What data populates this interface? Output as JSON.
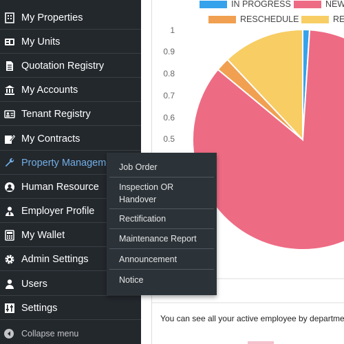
{
  "sidebar": {
    "items": [
      {
        "label": "My Properties",
        "icon": "building-icon"
      },
      {
        "label": "My Units",
        "icon": "units-icon"
      },
      {
        "label": "Quotation Registry",
        "icon": "document-icon"
      },
      {
        "label": "My Accounts",
        "icon": "bank-icon"
      },
      {
        "label": "Tenant Registry",
        "icon": "id-card-icon"
      },
      {
        "label": "My Contracts",
        "icon": "edit-icon"
      },
      {
        "label": "Property Management",
        "icon": "wrench-icon"
      },
      {
        "label": "Human Resource",
        "icon": "users-circle-icon"
      },
      {
        "label": "Employer Profile",
        "icon": "user-tie-icon"
      },
      {
        "label": "My Wallet",
        "icon": "calculator-icon"
      },
      {
        "label": "Admin Settings",
        "icon": "gear-icon"
      },
      {
        "label": "Users",
        "icon": "user-icon"
      },
      {
        "label": "Settings",
        "icon": "sliders-icon"
      }
    ],
    "collapse_label": "Collapse menu"
  },
  "submenu": {
    "items": [
      {
        "label": "Job Order"
      },
      {
        "label": "Inspection OR Handover"
      },
      {
        "label": "Rectification"
      },
      {
        "label": "Maintenance Report"
      },
      {
        "label": "Announcement"
      },
      {
        "label": "Notice"
      }
    ]
  },
  "main": {
    "partial_label": "...ployee...",
    "note": "You can see all your active employee by department"
  },
  "chart_data": {
    "type": "pie",
    "series": [
      {
        "name": "IN PROGRESS",
        "value": 0.01,
        "color": "#36a2eb"
      },
      {
        "name": "NEW",
        "value": 0.85,
        "color": "#ee6b84"
      },
      {
        "name": "RESCHEDULE",
        "value": 0.02,
        "color": "#f0a050"
      },
      {
        "name": "RE...",
        "value": 0.12,
        "color": "#f7cd64"
      }
    ],
    "y_ticks": [
      "1",
      "0.9",
      "0.8",
      "0.7",
      "0.6",
      "0.5"
    ],
    "ylim": [
      0,
      1
    ]
  }
}
